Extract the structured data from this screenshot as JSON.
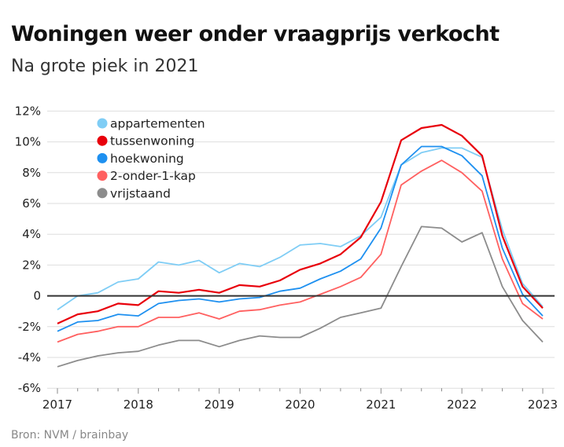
{
  "title": "Woningen weer onder vraagprijs verkocht",
  "subtitle": "Na grote piek in 2021",
  "source": "Bron: NVM / brainbay",
  "chart_data": {
    "type": "line",
    "title": "Woningen weer onder vraagprijs verkocht",
    "subtitle": "Na grote piek in 2021",
    "x_ticks": [
      "2017",
      "2018",
      "2019",
      "2020",
      "2021",
      "2022",
      "2023"
    ],
    "y_ticks": [
      "12%",
      "10%",
      "8%",
      "6%",
      "4%",
      "2%",
      "0",
      "-2%",
      "-4%",
      "-6%"
    ],
    "y_tick_values": [
      12,
      10,
      8,
      6,
      4,
      2,
      0,
      -2,
      -4,
      -6
    ],
    "ylim": [
      -6,
      12
    ],
    "xlim": [
      2017,
      2023
    ],
    "x_step": "quarter",
    "x": [
      2017,
      2017.25,
      2017.5,
      2017.75,
      2018,
      2018.25,
      2018.5,
      2018.75,
      2019,
      2019.25,
      2019.5,
      2019.75,
      2020,
      2020.25,
      2020.5,
      2020.75,
      2021,
      2021.25,
      2021.5,
      2021.75,
      2022,
      2022.25,
      2022.5,
      2022.75,
      2023
    ],
    "grid": true,
    "legend_position": "top-left",
    "series": [
      {
        "name": "appartementen",
        "color": "#7fcdf5",
        "values": [
          -0.9,
          0,
          0.2,
          0.9,
          1.1,
          2.2,
          2.0,
          2.3,
          1.5,
          2.1,
          1.9,
          2.5,
          3.3,
          3.4,
          3.2,
          3.9,
          5.1,
          8.5,
          9.3,
          9.6,
          9.6,
          9.0,
          4.3,
          0.8,
          -0.7
        ]
      },
      {
        "name": "tussenwoning",
        "color": "#e8000b",
        "values": [
          -1.8,
          -1.2,
          -1.0,
          -0.5,
          -0.6,
          0.3,
          0.2,
          0.4,
          0.2,
          0.7,
          0.6,
          1.0,
          1.7,
          2.1,
          2.7,
          3.8,
          6.1,
          10.1,
          10.9,
          11.1,
          10.4,
          9.1,
          3.9,
          0.6,
          -0.8
        ]
      },
      {
        "name": "hoekwoning",
        "color": "#1e90f0",
        "values": [
          -2.3,
          -1.7,
          -1.6,
          -1.2,
          -1.3,
          -0.5,
          -0.3,
          -0.2,
          -0.4,
          -0.2,
          -0.1,
          0.3,
          0.5,
          1.1,
          1.6,
          2.4,
          4.4,
          8.5,
          9.7,
          9.7,
          9.1,
          7.8,
          3.1,
          0.1,
          -1.3
        ]
      },
      {
        "name": "2-onder-1-kap",
        "color": "#ff6060",
        "values": [
          -3.0,
          -2.5,
          -2.3,
          -2.0,
          -2.0,
          -1.4,
          -1.4,
          -1.1,
          -1.5,
          -1.0,
          -0.9,
          -0.6,
          -0.4,
          0.1,
          0.6,
          1.2,
          2.7,
          7.2,
          8.1,
          8.8,
          8.0,
          6.8,
          2.4,
          -0.5,
          -1.5
        ]
      },
      {
        "name": "vrijstaand",
        "color": "#8c8c8c",
        "values": [
          -4.6,
          -4.2,
          -3.9,
          -3.7,
          -3.6,
          -3.2,
          -2.9,
          -2.9,
          -3.3,
          -2.9,
          -2.6,
          -2.7,
          -2.7,
          -2.1,
          -1.4,
          -1.1,
          -0.8,
          1.9,
          4.5,
          4.4,
          3.5,
          4.1,
          0.6,
          -1.6,
          -3.0
        ]
      }
    ]
  }
}
